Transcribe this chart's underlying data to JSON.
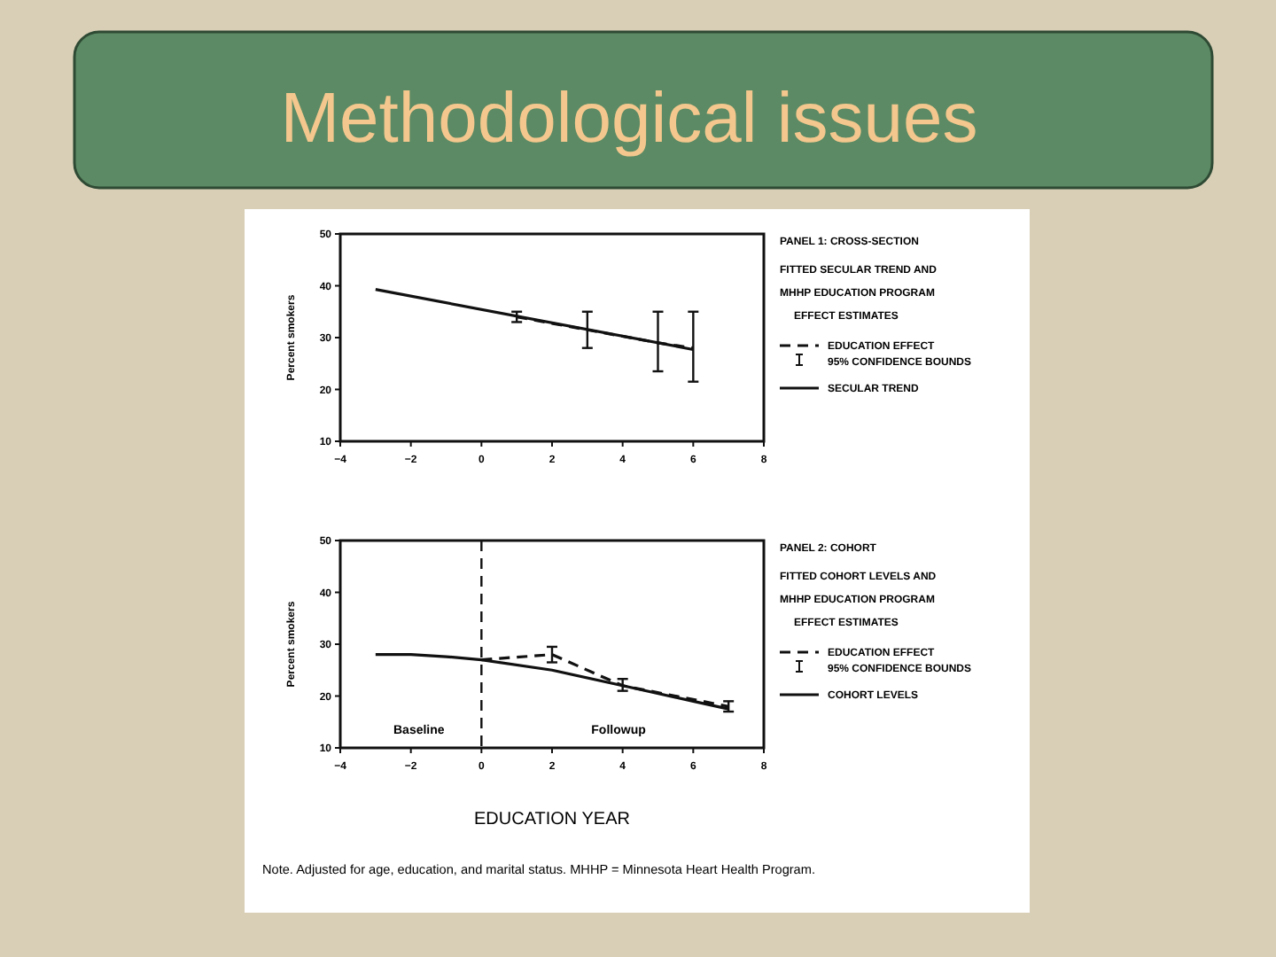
{
  "chart_data": [
    {
      "type": "line",
      "title": "Methodological issues",
      "legend_title": "FITTED SECULAR TREND AND MHHP EDUCATION PROGRAM EFFECT ESTIMATES",
      "ylabel": "Percent smokers",
      "series": [
        {
          "name": "EDUCATION EFFECT",
          "color": "#111111",
          "line_style": "dashed",
          "x": [
            1,
            3,
            5,
            6
          ],
          "values": [
            34,
            31.5,
            29,
            28
          ],
          "errors": [
            [
              33,
              35
            ],
            [
              28,
              35
            ],
            [
              23.5,
              35
            ],
            [
              21.5,
              35
            ]
          ]
        },
        {
          "name": "SECULAR TREND",
          "color": "#111111",
          "line_style": "solid",
          "x": [
            -3,
            6
          ],
          "values": [
            39.3,
            27.7
          ]
        }
      ],
      "annotations": [
        "PANEL 1: CROSS-SECTION",
        "95% CONFIDENCE BOUNDS"
      ],
      "xlim": [
        -4,
        8
      ],
      "xticks": [
        -4,
        -2,
        0,
        2,
        4,
        6,
        8
      ],
      "ylim": [
        10,
        50
      ],
      "yticks": [
        10,
        20,
        30,
        40,
        50
      ],
      "grid": false,
      "legend": "right",
      "marker": "none"
    },
    {
      "type": "line",
      "legend_title": "FITTED COHORT LEVELS AND MHHP EDUCATION PROGRAM EFFECT ESTIMATES",
      "ylabel": "Percent smokers",
      "xlabel": "EDUCATION YEAR",
      "series": [
        {
          "name": "EDUCATION EFFECT",
          "color": "#111111",
          "line_style": "dashed",
          "x": [
            0,
            2,
            4,
            7
          ],
          "values": [
            27,
            28,
            22,
            18
          ],
          "errors": [
            null,
            [
              26.5,
              29.5
            ],
            [
              21,
              23.3
            ],
            [
              17,
              19
            ]
          ]
        },
        {
          "name": "COHORT LEVELS",
          "color": "#111111",
          "line_style": "solid",
          "x": [
            -3,
            -2,
            -1,
            0,
            2,
            4,
            6,
            7
          ],
          "values": [
            28,
            28,
            27.6,
            27,
            25,
            22,
            19,
            17.5
          ]
        }
      ],
      "annotations": [
        "PANEL 2: COHORT",
        "95% CONFIDENCE BOUNDS",
        "Baseline",
        "Followup",
        "Note. Adjusted for age, education, and marital status. MHHP = Minnesota Heart Health Program."
      ],
      "ref_lines": [
        {
          "axis": "x",
          "value": 0,
          "line_style": "dashed"
        }
      ],
      "xlim": [
        -4,
        8
      ],
      "xticks": [
        -4,
        -2,
        0,
        2,
        4,
        6,
        8
      ],
      "ylim": [
        10,
        50
      ],
      "yticks": [
        10,
        20,
        30,
        40,
        50
      ],
      "grid": false,
      "legend": "right",
      "marker": "none"
    }
  ]
}
